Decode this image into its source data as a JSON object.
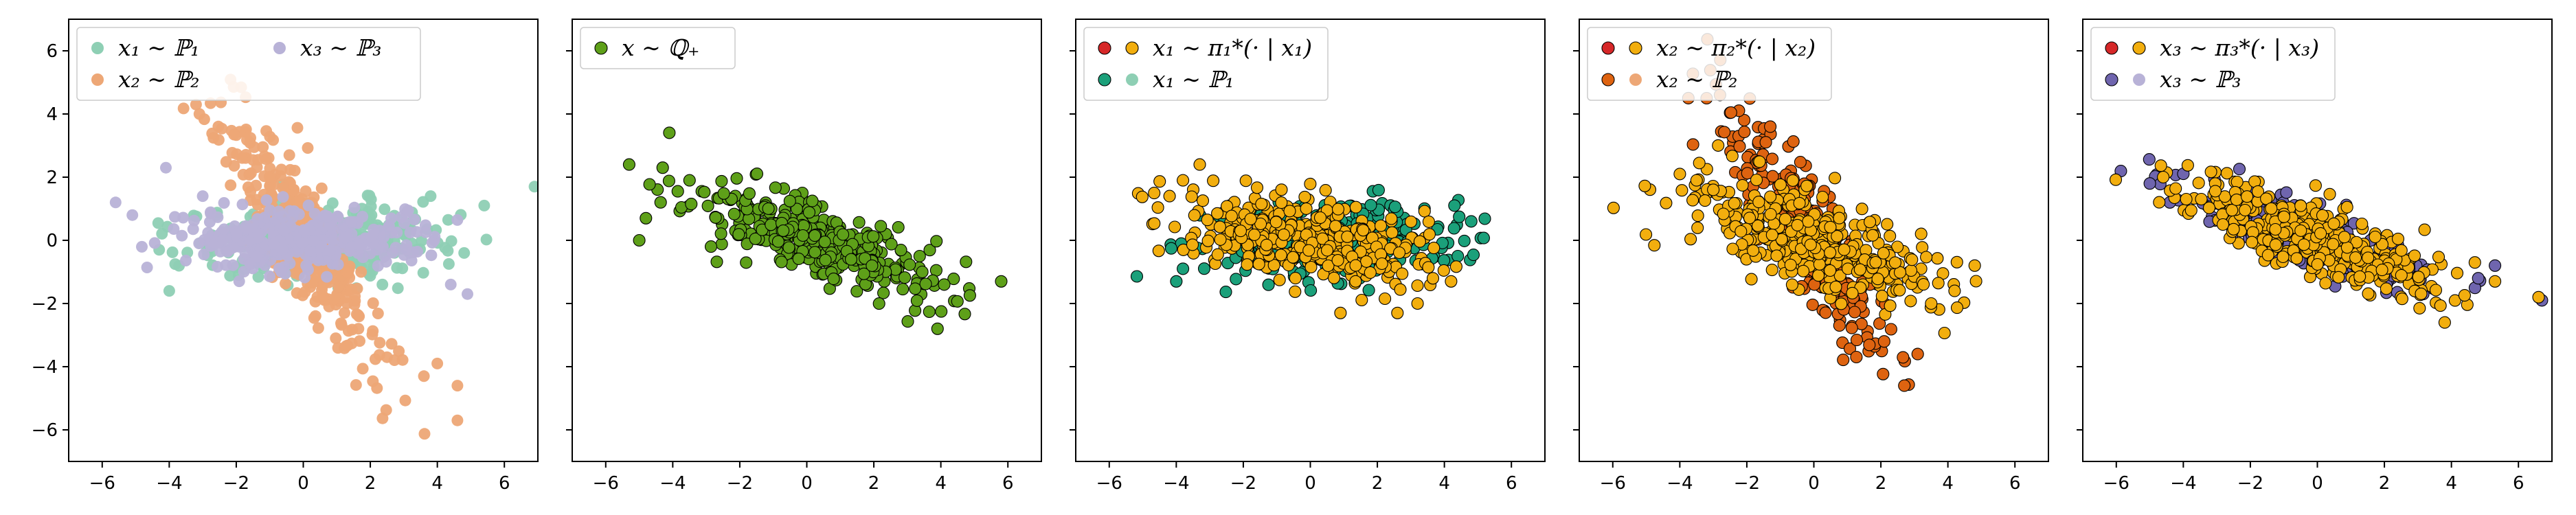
{
  "figure": {
    "colors": {
      "p1": "#8ecfb4",
      "p2": "#eda776",
      "p3": "#b8b2d7",
      "qstar": "#5ea019",
      "pi_red": "#d62728",
      "pi_orange": "#f2ae0e",
      "p1_dark": "#1ba07a",
      "p2_dark": "#de6310",
      "p3_dark": "#6f65ae"
    }
  },
  "chart_data": [
    {
      "type": "scatter",
      "xlim": [
        -7,
        7
      ],
      "ylim": [
        -7,
        7
      ],
      "xticks": [
        -6,
        -4,
        -2,
        0,
        2,
        4,
        6
      ],
      "yticks": [
        -6,
        -4,
        -2,
        0,
        2,
        4,
        6
      ],
      "legend": {
        "placement": "top-left",
        "ncol": 2,
        "entries": [
          {
            "label": "x₁ ∼ ℙ₁",
            "markers": [
              "p1"
            ]
          },
          {
            "label": "x₂ ∼ ℙ₂",
            "markers": [
              "p2"
            ]
          },
          {
            "label": "x₃ ∼ ℙ₃",
            "markers": [
              "p3"
            ]
          }
        ]
      },
      "series": [
        {
          "color": "p1",
          "edge": false,
          "center": [
            0.5,
            0.0
          ],
          "axis_angle_deg": 2,
          "spread": [
            1.9,
            0.6
          ],
          "n": 320,
          "outliers": [
            [
              6.9,
              1.7
            ],
            [
              5.4,
              1.1
            ],
            [
              4.8,
              -0.4
            ],
            [
              -4.0,
              -1.6
            ],
            [
              3.8,
              1.4
            ],
            [
              -4.3,
              -0.3
            ]
          ]
        },
        {
          "color": "p2",
          "edge": false,
          "center": [
            0.0,
            0.0
          ],
          "axis_angle_deg": -60,
          "spread": [
            2.2,
            0.55
          ],
          "n": 300,
          "outliers": [
            [
              -3.2,
              4.3
            ],
            [
              4.6,
              -4.6
            ],
            [
              4.6,
              -5.7
            ],
            [
              3.6,
              -4.3
            ],
            [
              4.0,
              -3.9
            ],
            [
              -3.1,
              4.0
            ]
          ]
        },
        {
          "color": "p3",
          "edge": false,
          "center": [
            0.0,
            0.0
          ],
          "axis_angle_deg": 0,
          "spread": [
            1.8,
            0.5
          ],
          "n": 340,
          "outliers": [
            [
              -5.6,
              1.2
            ],
            [
              -5.1,
              0.8
            ],
            [
              -4.1,
              2.3
            ],
            [
              4.9,
              -1.7
            ],
            [
              4.4,
              -1.4
            ],
            [
              -3.0,
              1.4
            ]
          ]
        }
      ]
    },
    {
      "type": "scatter",
      "xlim": [
        -7,
        7
      ],
      "ylim": [
        -7,
        7
      ],
      "xticks": [
        -6,
        -4,
        -2,
        0,
        2,
        4,
        6
      ],
      "yticks": [],
      "legend": {
        "placement": "top-left",
        "ncol": 1,
        "entries": [
          {
            "label": "x ∼ ℚ₊",
            "markers": [
              "qstar"
            ]
          }
        ]
      },
      "series": [
        {
          "color": "qstar",
          "edge": true,
          "center": [
            0.2,
            0.0
          ],
          "axis_angle_deg": -23,
          "spread": [
            1.9,
            0.55
          ],
          "n": 360,
          "outliers": [
            [
              -5.3,
              2.4
            ],
            [
              -4.8,
              0.7
            ],
            [
              -4.3,
              2.3
            ],
            [
              -5.0,
              0.0
            ],
            [
              5.8,
              -1.3
            ],
            [
              3.9,
              -2.8
            ],
            [
              4.1,
              -1.4
            ],
            [
              -3.5,
              1.9
            ]
          ]
        }
      ]
    },
    {
      "type": "scatter",
      "xlim": [
        -7,
        7
      ],
      "ylim": [
        -7,
        7
      ],
      "xticks": [
        -6,
        -4,
        -2,
        0,
        2,
        4,
        6
      ],
      "yticks": [],
      "legend": {
        "placement": "top-left",
        "ncol": 1,
        "entries": [
          {
            "label": "x₁ ∼ π₁*(· | x₁)",
            "markers": [
              "pi_red",
              "pi_orange"
            ]
          },
          {
            "label": "x₁ ∼ ℙ₁",
            "markers": [
              "p1_dark",
              "p1"
            ]
          }
        ]
      },
      "series": [
        {
          "color": "p1_dark",
          "edge": true,
          "center": [
            0.5,
            0.0
          ],
          "axis_angle_deg": 2,
          "spread": [
            1.9,
            0.6
          ],
          "n": 330,
          "outliers": [
            [
              4.8,
              0.6
            ],
            [
              4.3,
              1.1
            ],
            [
              -4.0,
              -1.3
            ],
            [
              -3.8,
              -0.9
            ],
            [
              4.4,
              -0.5
            ]
          ]
        },
        {
          "color": "pi_orange",
          "edge": true,
          "center": [
            0.0,
            0.0
          ],
          "axis_angle_deg": -10,
          "spread": [
            1.8,
            0.6
          ],
          "n": 360,
          "outliers": [
            [
              -3.3,
              2.4
            ],
            [
              -4.2,
              1.4
            ],
            [
              -3.8,
              1.9
            ],
            [
              4.2,
              -1.3
            ],
            [
              3.2,
              -2.0
            ],
            [
              2.6,
              -2.3
            ],
            [
              0.9,
              -2.3
            ]
          ]
        }
      ]
    },
    {
      "type": "scatter",
      "xlim": [
        -7,
        7
      ],
      "ylim": [
        -7,
        7
      ],
      "xticks": [
        -6,
        -4,
        -2,
        0,
        2,
        4,
        6
      ],
      "yticks": [],
      "legend": {
        "placement": "top-left",
        "ncol": 1,
        "entries": [
          {
            "label": "x₂ ∼ π₂*(· | x₂)",
            "markers": [
              "pi_red",
              "pi_orange"
            ]
          },
          {
            "label": "x₂ ∼ ℙ₂",
            "markers": [
              "p2_dark",
              "p2"
            ]
          }
        ]
      },
      "series": [
        {
          "color": "p2_dark",
          "edge": true,
          "center": [
            0.0,
            0.0
          ],
          "axis_angle_deg": -60,
          "spread": [
            2.2,
            0.5
          ],
          "n": 300,
          "outliers": [
            [
              -3.2,
              4.5
            ],
            [
              -2.8,
              4.6
            ],
            [
              2.7,
              -4.6
            ],
            [
              3.1,
              -3.6
            ],
            [
              -1.3,
              3.6
            ],
            [
              2.1,
              -3.2
            ]
          ]
        },
        {
          "color": "pi_orange",
          "edge": true,
          "center": [
            0.0,
            0.0
          ],
          "axis_angle_deg": -20,
          "spread": [
            2.0,
            0.7
          ],
          "n": 380,
          "outliers": [
            [
              -4.0,
              2.1
            ],
            [
              4.8,
              -0.8
            ],
            [
              4.2,
              -1.6
            ],
            [
              -3.5,
              1.9
            ],
            [
              -3.0,
              1.6
            ],
            [
              3.5,
              -2.0
            ]
          ]
        }
      ]
    },
    {
      "type": "scatter",
      "xlim": [
        -7,
        7
      ],
      "ylim": [
        -7,
        7
      ],
      "xticks": [
        -6,
        -4,
        -2,
        0,
        2,
        4,
        6
      ],
      "yticks": [],
      "legend": {
        "placement": "top-left",
        "ncol": 1,
        "entries": [
          {
            "label": "x₃ ∼ π₃*(· | x₃)",
            "markers": [
              "pi_red",
              "pi_orange"
            ]
          },
          {
            "label": "x₃ ∼ ℙ₃",
            "markers": [
              "p3_dark",
              "p3"
            ]
          }
        ]
      },
      "series": [
        {
          "color": "p3_dark",
          "edge": true,
          "center": [
            0.0,
            0.0
          ],
          "axis_angle_deg": -22,
          "spread": [
            2.1,
            0.4
          ],
          "n": 260,
          "outliers": [
            [
              -5.0,
              1.8
            ],
            [
              5.3,
              -0.8
            ],
            [
              4.8,
              -1.2
            ],
            [
              6.7,
              -1.9
            ],
            [
              -4.4,
              1.2
            ]
          ]
        },
        {
          "color": "pi_orange",
          "edge": true,
          "center": [
            0.0,
            0.0
          ],
          "axis_angle_deg": -22,
          "spread": [
            2.0,
            0.5
          ],
          "n": 380,
          "outliers": [
            [
              -4.6,
              2.0
            ],
            [
              5.3,
              -1.3
            ],
            [
              6.6,
              -1.8
            ],
            [
              4.7,
              -0.7
            ],
            [
              3.8,
              -2.6
            ]
          ]
        }
      ]
    }
  ]
}
